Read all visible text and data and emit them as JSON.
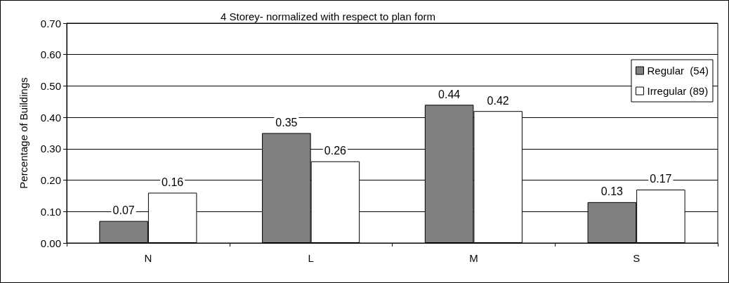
{
  "chart_data": {
    "type": "bar",
    "title": "4 Storey- normalized with respect to plan form",
    "ylabel": "Percentage of Buildings",
    "categories": [
      "N",
      "L",
      "M",
      "S"
    ],
    "series": [
      {
        "name": "Regular  (54)",
        "color": "#808080",
        "values": [
          0.07,
          0.35,
          0.44,
          0.13
        ]
      },
      {
        "name": "Irregular (89)",
        "color": "#ffffff",
        "values": [
          0.16,
          0.26,
          0.42,
          0.17
        ]
      }
    ],
    "ylim": [
      0,
      0.7
    ],
    "yticks": [
      {
        "value": 0,
        "label": "0.00"
      },
      {
        "value": 0.1,
        "label": "0.10"
      },
      {
        "value": 0.2,
        "label": "0.20"
      },
      {
        "value": 0.3,
        "label": "0.30"
      },
      {
        "value": 0.4,
        "label": "0.40"
      },
      {
        "value": 0.5,
        "label": "0.50"
      },
      {
        "value": 0.6,
        "label": "0.60"
      },
      {
        "value": 0.7,
        "label": "0.70"
      }
    ],
    "grid": "y",
    "legend": "top right",
    "data_labels": true
  }
}
